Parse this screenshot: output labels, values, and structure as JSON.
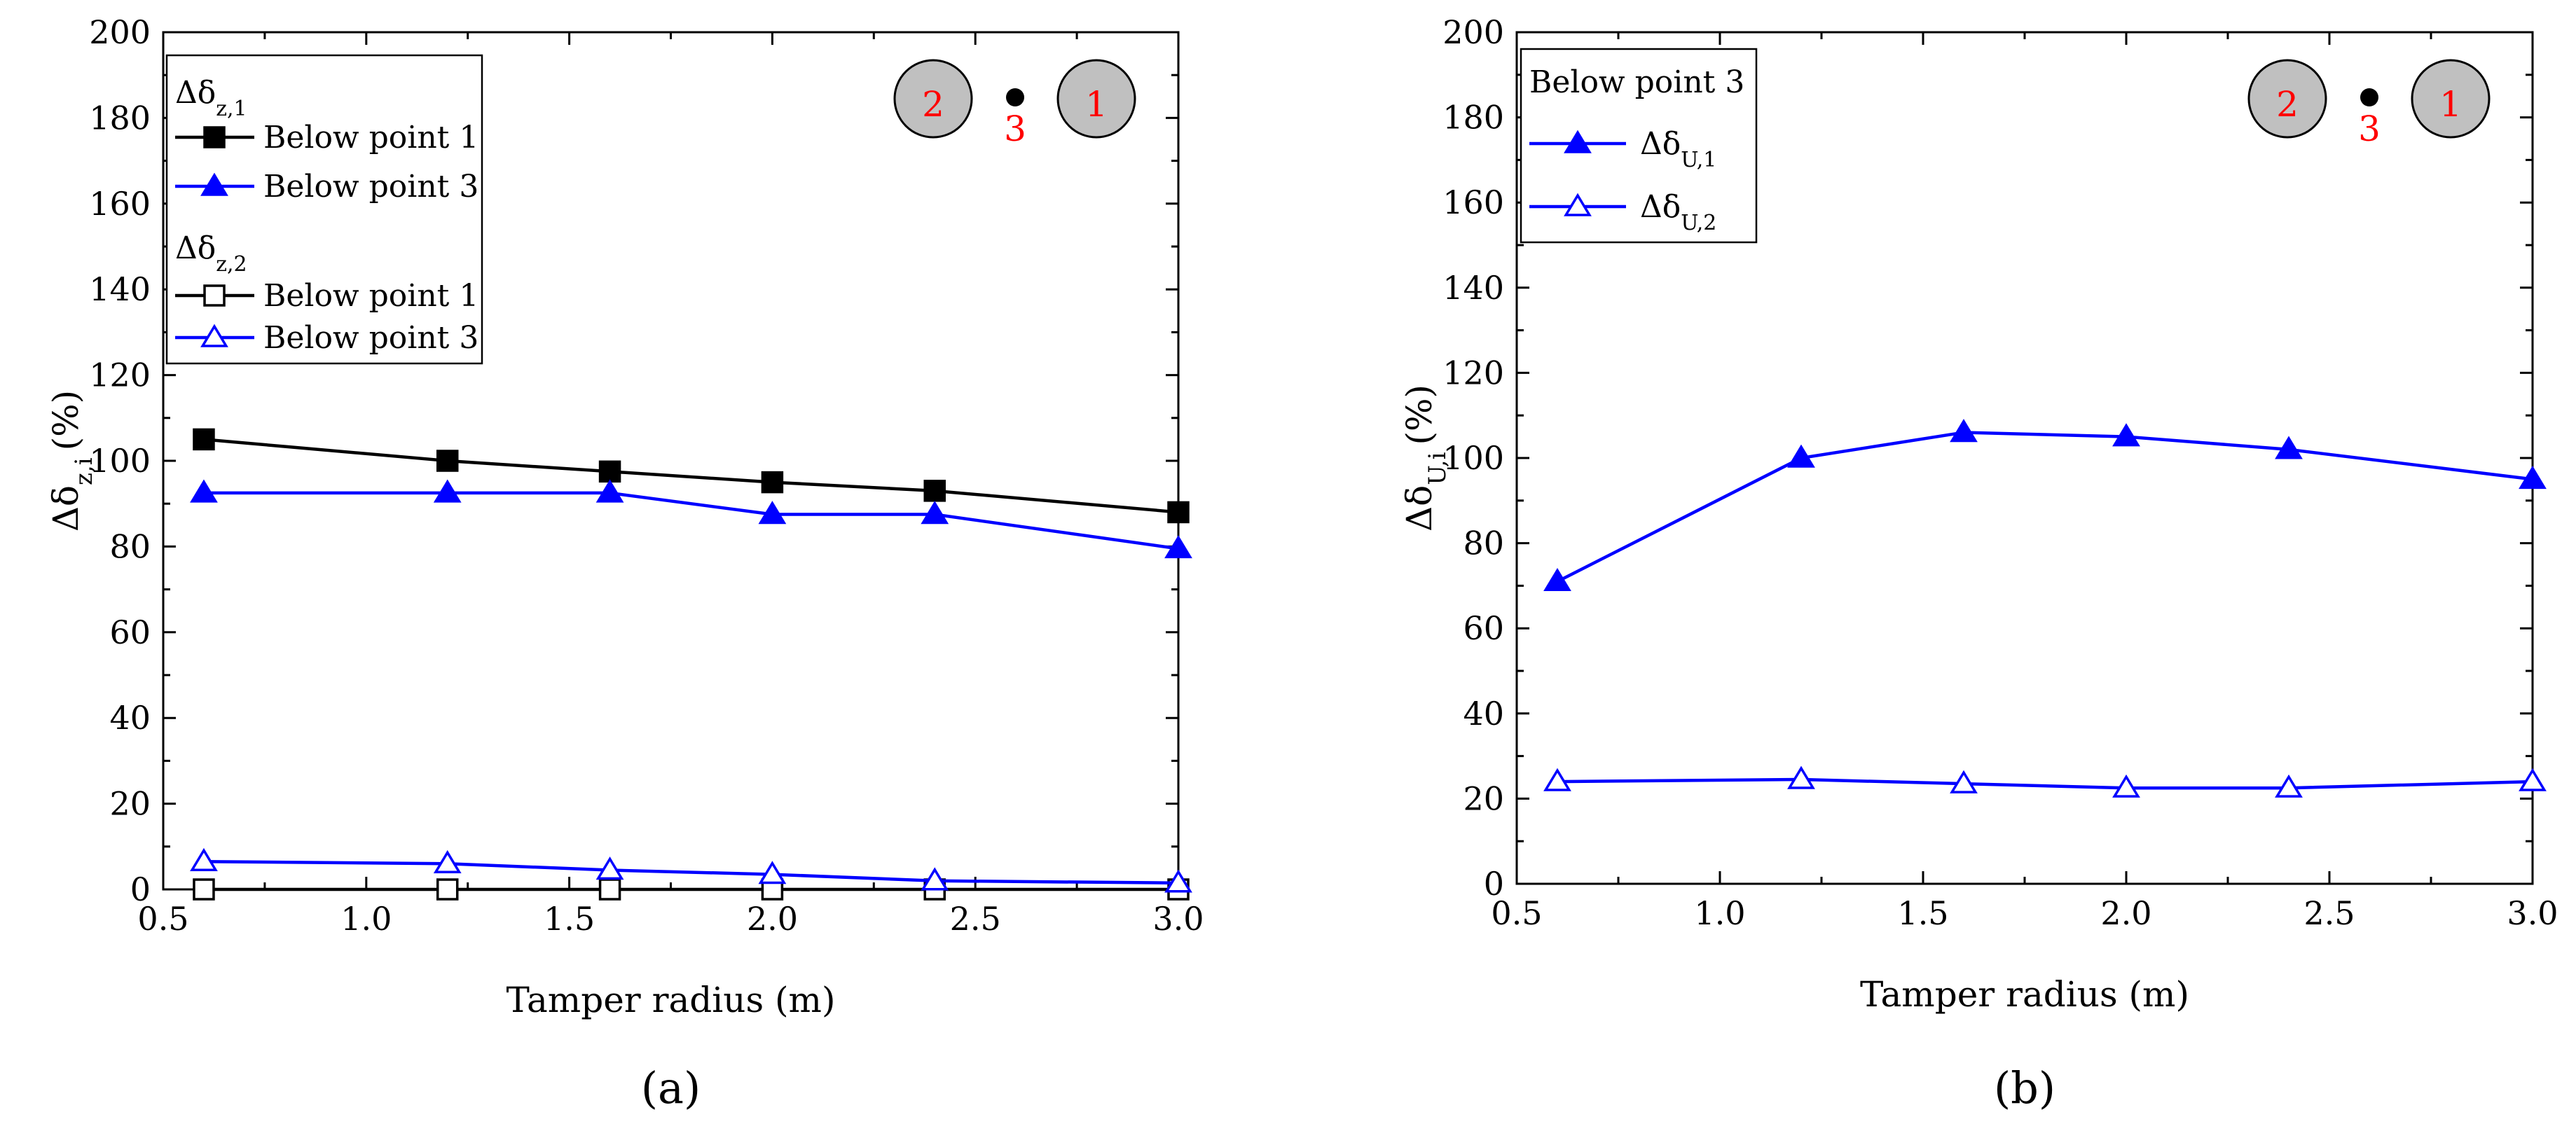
{
  "chart_data": [
    {
      "type": "line",
      "panel_label": "(a)",
      "panel_letter": "a",
      "xlabel": "Tamper radius (m)",
      "ylabel": "Δδz,i (%)",
      "ylabel_main": "Δδ",
      "ylabel_sub": "z,i",
      "ylabel_suffix": "(%)",
      "xlim": [
        0.5,
        3.0
      ],
      "ylim": [
        0,
        200
      ],
      "xticks": [
        0.5,
        1.0,
        1.5,
        2.0,
        2.5,
        3.0
      ],
      "xtick_labels": [
        "0.5",
        "1.0",
        "1.5",
        "2.0",
        "2.5",
        "3.0"
      ],
      "yticks": [
        0,
        20,
        40,
        60,
        80,
        100,
        120,
        140,
        160,
        180,
        200
      ],
      "ytick_labels": [
        "0",
        "20",
        "40",
        "60",
        "80",
        "100",
        "120",
        "140",
        "160",
        "180",
        "200"
      ],
      "x": [
        0.6,
        1.2,
        1.6,
        2.0,
        2.4,
        3.0
      ],
      "legend_groups": [
        {
          "header": "Δδz,1",
          "header_main": "Δδ",
          "header_sub": "z,1"
        },
        {
          "header": "Δδz,2",
          "header_main": "Δδ",
          "header_sub": "z,2"
        }
      ],
      "series": [
        {
          "name": "Below point 1",
          "group": 0,
          "marker": "square",
          "filled": true,
          "color": "#000000",
          "values": [
            105,
            100,
            97.5,
            95,
            93,
            88
          ]
        },
        {
          "name": "Below point 3",
          "group": 0,
          "marker": "triangle",
          "filled": true,
          "color": "#0000ff",
          "values": [
            92.5,
            92.5,
            92.5,
            87.5,
            87.5,
            79.5
          ]
        },
        {
          "name": "Below point 1",
          "group": 1,
          "marker": "square",
          "filled": false,
          "color": "#000000",
          "values": [
            0,
            0,
            0,
            0,
            0,
            0
          ]
        },
        {
          "name": "Below point 3",
          "group": 1,
          "marker": "triangle",
          "filled": false,
          "color": "#0000ff",
          "values": [
            6.5,
            6,
            4.5,
            3.5,
            2,
            1.5
          ]
        }
      ],
      "diagram": {
        "left_label": "2",
        "middle_label": "3",
        "right_label": "1"
      }
    },
    {
      "type": "line",
      "panel_label": "(b)",
      "panel_letter": "b",
      "xlabel": "Tamper radius (m)",
      "ylabel": "ΔδU,i (%)",
      "ylabel_main": "Δδ",
      "ylabel_sub": "U,i",
      "ylabel_suffix": "(%)",
      "xlim": [
        0.5,
        3.0
      ],
      "ylim": [
        0,
        200
      ],
      "xticks": [
        0.5,
        1.0,
        1.5,
        2.0,
        2.5,
        3.0
      ],
      "xtick_labels": [
        "0.5",
        "1.0",
        "1.5",
        "2.0",
        "2.5",
        "3.0"
      ],
      "yticks": [
        0,
        20,
        40,
        60,
        80,
        100,
        120,
        140,
        160,
        180,
        200
      ],
      "ytick_labels": [
        "0",
        "20",
        "40",
        "60",
        "80",
        "100",
        "120",
        "140",
        "160",
        "180",
        "200"
      ],
      "x": [
        0.6,
        1.2,
        1.6,
        2.0,
        2.4,
        3.0
      ],
      "legend_title": "Below point 3",
      "series": [
        {
          "name": "ΔδU,1",
          "name_main": "Δδ",
          "name_sub": "U,1",
          "marker": "triangle",
          "filled": true,
          "color": "#0000ff",
          "values": [
            71,
            100,
            106,
            105,
            102,
            95
          ]
        },
        {
          "name": "ΔδU,2",
          "name_main": "Δδ",
          "name_sub": "U,2",
          "marker": "triangle",
          "filled": false,
          "color": "#0000ff",
          "values": [
            24,
            24.5,
            23.5,
            22.5,
            22.5,
            24
          ]
        }
      ],
      "diagram": {
        "left_label": "2",
        "middle_label": "3",
        "right_label": "1"
      }
    }
  ],
  "colors": {
    "black": "#000000",
    "blue": "#0000ff",
    "red": "#ff0000",
    "gray": "#c0c0c0",
    "highlight": "#ff0000"
  }
}
